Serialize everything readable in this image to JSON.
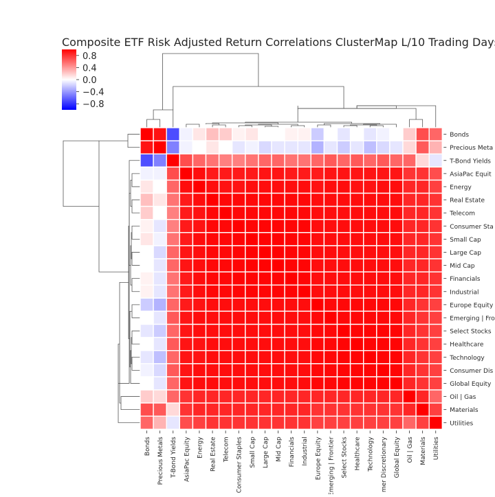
{
  "chart_data": {
    "type": "heatmap",
    "title": "Composite ETF Risk Adjusted Return Correlations ClusterMap L/10 Trading Days",
    "colormap": {
      "low": "#0000ff",
      "mid": "#ffffff",
      "high": "#ff0000"
    },
    "colorbar": {
      "range": [
        -1,
        1
      ],
      "ticks": [
        "0.8",
        "0.4",
        "0.0",
        "−0.4",
        "−0.8"
      ]
    },
    "labels": [
      "Bonds",
      "Precious Metals",
      "T-Bond Yields",
      "AsiaPac Equity",
      "Energy",
      "Real Estate",
      "Telecom",
      "Consumer Staples",
      "Small Cap",
      "Large Cap",
      "Mid Cap",
      "Financials",
      "Industrial",
      "Europe Equity",
      "Emerging | Frontier",
      "Select Stocks",
      "Healthcare",
      "Technology",
      "Consumer Discretionary",
      "Global Equity",
      "Oil | Gas",
      "Materials",
      "Utilities"
    ],
    "row_labels_visible": [
      "Bonds",
      "Precious Meta",
      "T-Bond Yields",
      "AsiaPac Equit",
      "Energy",
      "Real Estate",
      "Telecom",
      "Consumer Sta",
      "Small Cap",
      "Large Cap",
      "Mid Cap",
      "Financials",
      "Industrial",
      "Europe Equity",
      "Emerging | Fro",
      "Select Stocks",
      "Healthcare",
      "Technology",
      "Consumer Dis",
      "Global Equity",
      "Oil | Gas",
      "Materials",
      "Utilities"
    ],
    "col_labels_visible": [
      "Bonds",
      "Precious Metals",
      "T-Bond Yields",
      "AsiaPac Equity",
      "Energy",
      "Real Estate",
      "Telecom",
      "Consumer Staples",
      "Small Cap",
      "Large Cap",
      "Mid Cap",
      "Financials",
      "Industrial",
      "Europe Equity",
      "Emerging | Frontier",
      "Select Stocks",
      "Healthcare",
      "Technology",
      "mer Discretionary",
      "Global Equity",
      "Oil | Gas",
      "Materials",
      "Utilities"
    ],
    "values": [
      [
        1.0,
        0.93,
        -0.7,
        -0.05,
        0.1,
        0.25,
        0.2,
        0.05,
        0.1,
        0.0,
        0.0,
        0.05,
        0.05,
        -0.2,
        0.0,
        -0.1,
        0.0,
        -0.1,
        -0.05,
        0.0,
        0.2,
        0.7,
        0.6
      ],
      [
        0.93,
        1.0,
        -0.5,
        -0.05,
        0.0,
        0.1,
        0.0,
        -0.1,
        -0.05,
        -0.15,
        -0.1,
        -0.1,
        -0.1,
        -0.3,
        -0.1,
        -0.2,
        -0.1,
        -0.25,
        -0.15,
        -0.1,
        0.15,
        0.65,
        0.3
      ],
      [
        -0.7,
        -0.5,
        1.0,
        0.7,
        0.6,
        0.55,
        0.5,
        0.5,
        0.55,
        0.6,
        0.6,
        0.55,
        0.55,
        0.6,
        0.65,
        0.6,
        0.65,
        0.6,
        0.65,
        0.6,
        0.6,
        0.15,
        -0.1
      ],
      [
        -0.05,
        -0.05,
        0.7,
        1.0,
        0.95,
        0.9,
        0.9,
        0.9,
        0.9,
        0.92,
        0.92,
        0.9,
        0.9,
        0.9,
        0.92,
        0.92,
        0.92,
        0.92,
        0.92,
        0.92,
        0.8,
        0.8,
        0.7
      ],
      [
        0.1,
        0.0,
        0.6,
        0.95,
        1.0,
        0.95,
        0.93,
        0.93,
        0.95,
        0.95,
        0.95,
        0.95,
        0.95,
        0.93,
        0.95,
        0.95,
        0.93,
        0.93,
        0.95,
        0.95,
        0.85,
        0.85,
        0.75
      ],
      [
        0.25,
        0.1,
        0.55,
        0.9,
        0.95,
        1.0,
        0.97,
        0.97,
        0.97,
        0.97,
        0.97,
        0.97,
        0.97,
        0.95,
        0.95,
        0.95,
        0.95,
        0.95,
        0.95,
        0.95,
        0.85,
        0.85,
        0.8
      ],
      [
        0.2,
        0.0,
        0.5,
        0.9,
        0.93,
        0.97,
        1.0,
        0.97,
        0.97,
        0.97,
        0.97,
        0.97,
        0.97,
        0.95,
        0.95,
        0.95,
        0.95,
        0.95,
        0.95,
        0.95,
        0.85,
        0.85,
        0.8
      ],
      [
        0.05,
        -0.1,
        0.5,
        0.9,
        0.93,
        0.97,
        0.97,
        1.0,
        0.98,
        0.98,
        0.98,
        0.98,
        0.98,
        0.95,
        0.95,
        0.95,
        0.95,
        0.95,
        0.95,
        0.95,
        0.85,
        0.85,
        0.8
      ],
      [
        0.1,
        -0.05,
        0.55,
        0.9,
        0.95,
        0.97,
        0.97,
        0.98,
        1.0,
        0.99,
        0.99,
        0.98,
        0.98,
        0.95,
        0.95,
        0.95,
        0.95,
        0.95,
        0.95,
        0.95,
        0.85,
        0.85,
        0.8
      ],
      [
        0.0,
        -0.15,
        0.6,
        0.92,
        0.95,
        0.97,
        0.97,
        0.98,
        0.99,
        1.0,
        0.99,
        0.98,
        0.98,
        0.95,
        0.95,
        0.95,
        0.95,
        0.95,
        0.95,
        0.95,
        0.85,
        0.85,
        0.8
      ],
      [
        0.0,
        -0.1,
        0.6,
        0.92,
        0.95,
        0.97,
        0.97,
        0.98,
        0.99,
        0.99,
        1.0,
        0.98,
        0.98,
        0.95,
        0.95,
        0.95,
        0.95,
        0.95,
        0.95,
        0.95,
        0.85,
        0.85,
        0.8
      ],
      [
        0.05,
        -0.1,
        0.55,
        0.9,
        0.95,
        0.97,
        0.97,
        0.98,
        0.98,
        0.98,
        0.98,
        1.0,
        0.98,
        0.95,
        0.95,
        0.95,
        0.95,
        0.95,
        0.95,
        0.95,
        0.85,
        0.85,
        0.8
      ],
      [
        0.05,
        -0.1,
        0.55,
        0.9,
        0.95,
        0.97,
        0.97,
        0.98,
        0.98,
        0.98,
        0.98,
        0.98,
        1.0,
        0.95,
        0.95,
        0.95,
        0.95,
        0.95,
        0.95,
        0.95,
        0.85,
        0.85,
        0.8
      ],
      [
        -0.2,
        -0.3,
        0.6,
        0.9,
        0.93,
        0.95,
        0.95,
        0.95,
        0.95,
        0.95,
        0.95,
        0.95,
        0.95,
        1.0,
        0.97,
        0.97,
        0.97,
        0.97,
        0.97,
        0.97,
        0.85,
        0.8,
        0.75
      ],
      [
        0.0,
        -0.1,
        0.65,
        0.92,
        0.95,
        0.95,
        0.95,
        0.95,
        0.95,
        0.95,
        0.95,
        0.95,
        0.95,
        0.97,
        1.0,
        0.97,
        0.97,
        0.97,
        0.97,
        0.97,
        0.85,
        0.8,
        0.75
      ],
      [
        -0.1,
        -0.2,
        0.6,
        0.92,
        0.95,
        0.95,
        0.95,
        0.95,
        0.95,
        0.95,
        0.95,
        0.95,
        0.95,
        0.97,
        0.97,
        1.0,
        0.98,
        0.98,
        0.98,
        0.98,
        0.85,
        0.8,
        0.75
      ],
      [
        0.0,
        -0.1,
        0.65,
        0.92,
        0.93,
        0.95,
        0.95,
        0.95,
        0.95,
        0.95,
        0.95,
        0.95,
        0.95,
        0.97,
        0.97,
        0.98,
        1.0,
        0.98,
        0.98,
        0.98,
        0.85,
        0.8,
        0.75
      ],
      [
        -0.1,
        -0.25,
        0.6,
        0.92,
        0.93,
        0.95,
        0.95,
        0.95,
        0.95,
        0.95,
        0.95,
        0.95,
        0.95,
        0.97,
        0.97,
        0.98,
        0.98,
        1.0,
        0.98,
        0.98,
        0.85,
        0.8,
        0.75
      ],
      [
        -0.05,
        -0.15,
        0.65,
        0.92,
        0.95,
        0.95,
        0.95,
        0.95,
        0.95,
        0.95,
        0.95,
        0.95,
        0.95,
        0.97,
        0.97,
        0.98,
        0.98,
        0.98,
        1.0,
        0.98,
        0.85,
        0.8,
        0.75
      ],
      [
        0.0,
        -0.1,
        0.6,
        0.92,
        0.95,
        0.95,
        0.95,
        0.95,
        0.95,
        0.95,
        0.95,
        0.95,
        0.95,
        0.97,
        0.97,
        0.98,
        0.98,
        0.98,
        0.98,
        1.0,
        0.85,
        0.8,
        0.75
      ],
      [
        0.2,
        0.15,
        0.6,
        0.8,
        0.85,
        0.85,
        0.85,
        0.85,
        0.85,
        0.85,
        0.85,
        0.85,
        0.85,
        0.85,
        0.85,
        0.85,
        0.85,
        0.85,
        0.85,
        0.85,
        1.0,
        0.85,
        0.6
      ],
      [
        0.7,
        0.65,
        0.15,
        0.8,
        0.85,
        0.85,
        0.85,
        0.85,
        0.85,
        0.85,
        0.85,
        0.85,
        0.85,
        0.8,
        0.8,
        0.8,
        0.8,
        0.8,
        0.8,
        0.8,
        0.85,
        1.0,
        0.75
      ],
      [
        0.6,
        0.3,
        -0.1,
        0.7,
        0.75,
        0.8,
        0.8,
        0.8,
        0.8,
        0.8,
        0.8,
        0.8,
        0.8,
        0.75,
        0.75,
        0.75,
        0.75,
        0.75,
        0.75,
        0.75,
        0.6,
        0.75,
        1.0
      ]
    ]
  }
}
